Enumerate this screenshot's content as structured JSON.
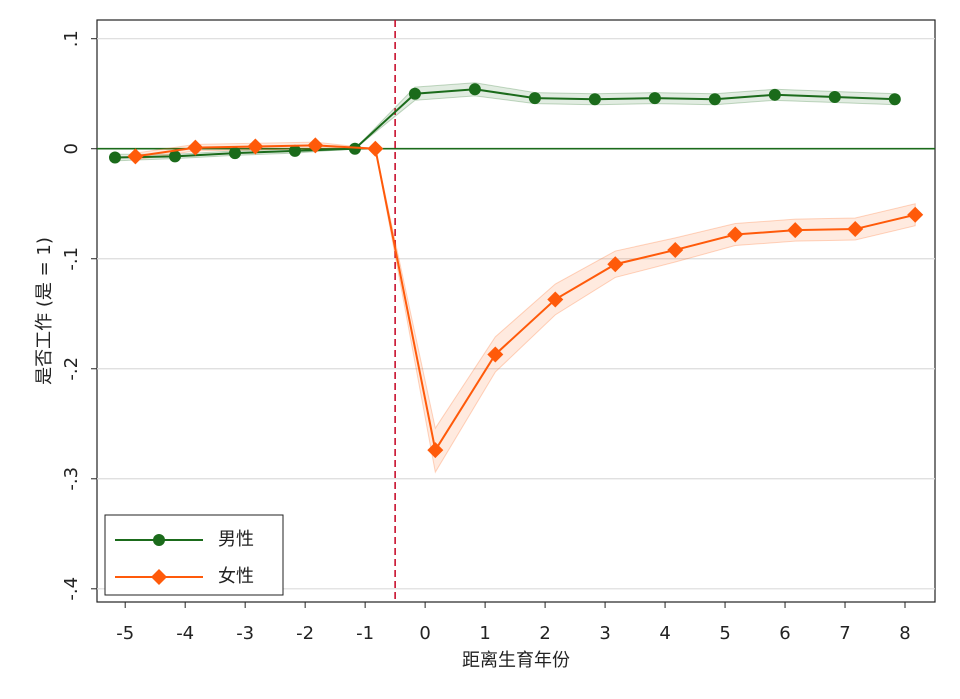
{
  "chart_data": {
    "type": "line",
    "xlabel": "距离生育年份",
    "ylabel": "是否工作 (是 = 1)",
    "xlim": [
      -5.47,
      8.5
    ],
    "ylim": [
      -0.412,
      0.117
    ],
    "xticks": [
      -5,
      -4,
      -3,
      -2,
      -1,
      0,
      1,
      2,
      3,
      4,
      5,
      6,
      7,
      8
    ],
    "yticks": [
      {
        "value": 0.1,
        "label": ".1"
      },
      0,
      {
        "value": -0.1,
        "label": "-.1"
      },
      {
        "value": -0.2,
        "label": "-.2"
      },
      {
        "value": -0.3,
        "label": "-.3"
      },
      {
        "value": -0.4,
        "label": "-.4"
      }
    ],
    "grid": true,
    "vline": -0.5,
    "vline_color": "#c8102e",
    "hline": 0,
    "hline_color": "#1b6b1b",
    "legend": "lower left",
    "series": [
      {
        "name": "男性",
        "color": "#1b6b1b",
        "marker": "circle",
        "x": [
          -5.17,
          -4.17,
          -3.17,
          -2.17,
          -1.17,
          -0.17,
          0.83,
          1.83,
          2.83,
          3.83,
          4.83,
          5.83,
          6.83,
          7.83
        ],
        "values": [
          -0.008,
          -0.007,
          -0.004,
          -0.002,
          0,
          0.05,
          0.054,
          0.046,
          0.045,
          0.046,
          0.045,
          0.049,
          0.047,
          0.045
        ],
        "ci_lower": [
          -0.011,
          -0.009,
          -0.006,
          -0.004,
          0,
          0.044,
          0.048,
          0.041,
          0.04,
          0.041,
          0.04,
          0.044,
          0.042,
          0.04
        ],
        "ci_upper": [
          -0.005,
          -0.005,
          -0.002,
          0,
          0,
          0.056,
          0.06,
          0.051,
          0.05,
          0.051,
          0.05,
          0.054,
          0.052,
          0.05
        ]
      },
      {
        "name": "女性",
        "color": "#ff5a0a",
        "marker": "diamond",
        "x": [
          -4.83,
          -3.83,
          -2.83,
          -1.83,
          -0.83,
          0.17,
          1.17,
          2.17,
          3.17,
          4.17,
          5.17,
          6.17,
          7.17,
          8.17
        ],
        "values": [
          -0.007,
          0.001,
          0.002,
          0.003,
          0,
          -0.274,
          -0.187,
          -0.137,
          -0.105,
          -0.092,
          -0.078,
          -0.074,
          -0.073,
          -0.06
        ],
        "ci_lower": [
          -0.01,
          -0.002,
          -0.001,
          0,
          0,
          -0.294,
          -0.203,
          -0.151,
          -0.117,
          -0.103,
          -0.088,
          -0.084,
          -0.083,
          -0.07
        ],
        "ci_upper": [
          -0.004,
          0.004,
          0.005,
          0.006,
          0,
          -0.254,
          -0.171,
          -0.123,
          -0.093,
          -0.081,
          -0.068,
          -0.064,
          -0.063,
          -0.05
        ]
      }
    ]
  }
}
